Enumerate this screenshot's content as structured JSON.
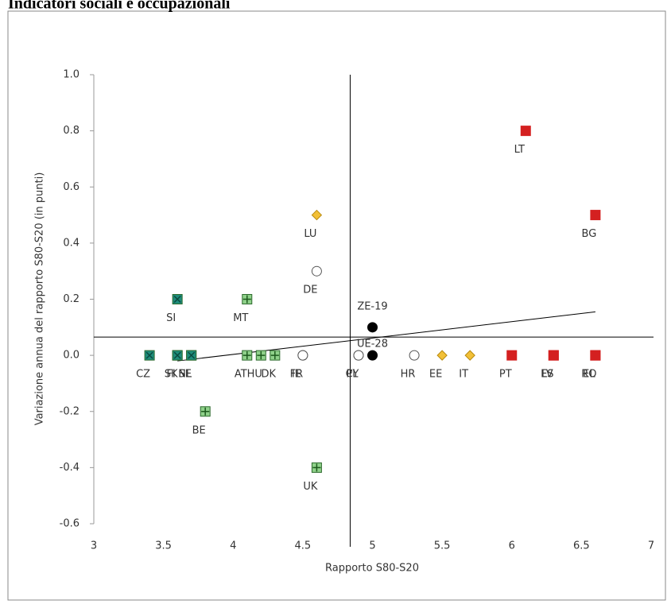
{
  "chart_data": {
    "type": "scatter",
    "title": "Indicatori sociali e occupazionali",
    "x_label": "Rapporto S80-S20",
    "y_label": "Variazione annua del rapporto S80-S20 (in punti)",
    "xlim": [
      3,
      7
    ],
    "xticks": [
      3,
      3.5,
      4,
      4.5,
      5,
      5.5,
      6,
      6.5,
      7
    ],
    "ylim": [
      -0.6,
      1.0
    ],
    "yticks": [
      -0.6,
      -0.4,
      -0.2,
      {
        "value": 0,
        "label": "0.0"
      },
      0.2,
      0.4,
      0.6,
      0.8,
      {
        "value": 1.0,
        "label": "1.0"
      }
    ],
    "hline": 0.065,
    "vline": 4.84,
    "trendline": {
      "x": [
        3.6,
        6.6
      ],
      "y": [
        -0.02,
        0.155
      ]
    },
    "series": [
      {
        "marker": "x-square",
        "color": "#1e8c7a",
        "labels": [
          "CZ",
          "SK",
          "FI",
          "NL",
          "SE",
          "SI"
        ],
        "x": [
          3.4,
          3.6,
          3.6,
          3.7,
          3.7,
          3.6
        ],
        "values": [
          0,
          0,
          0,
          0,
          0,
          0.2
        ]
      },
      {
        "marker": "plus-square",
        "color": "#8fd18a",
        "labels": [
          "MT",
          "AT",
          "HU",
          "DK",
          "BE",
          "UK"
        ],
        "x": [
          4.1,
          4.1,
          4.2,
          4.3,
          3.8,
          4.6
        ],
        "values": [
          0.2,
          0,
          0,
          0,
          -0.2,
          -0.4
        ]
      },
      {
        "marker": "open-circle",
        "color": "#555555",
        "labels": [
          "DE",
          "FR",
          "IE",
          "PL",
          "CY",
          "HR"
        ],
        "x": [
          4.6,
          4.5,
          4.5,
          4.9,
          4.9,
          5.3
        ],
        "values": [
          0.3,
          0,
          0,
          0,
          0,
          0
        ]
      },
      {
        "marker": "diamond",
        "color": "#f2c037",
        "labels": [
          "LU",
          "EE",
          "IT"
        ],
        "x": [
          4.6,
          5.5,
          5.7
        ],
        "values": [
          0.5,
          0,
          0
        ]
      },
      {
        "marker": "square",
        "color": "#d42020",
        "labels": [
          "LT",
          "BG",
          "PT",
          "ES",
          "LV",
          "EL",
          "RO"
        ],
        "x": [
          6.1,
          6.6,
          6.0,
          6.3,
          6.3,
          6.6,
          6.6
        ],
        "values": [
          0.8,
          0.5,
          0,
          0,
          0,
          0,
          0
        ]
      },
      {
        "marker": "circle",
        "color": "#000000",
        "label_color": "#3a6a96",
        "labels": [
          "ZE-19",
          "UE-28"
        ],
        "x": [
          5.0,
          5.0
        ],
        "values": [
          0.1,
          0
        ]
      }
    ]
  }
}
